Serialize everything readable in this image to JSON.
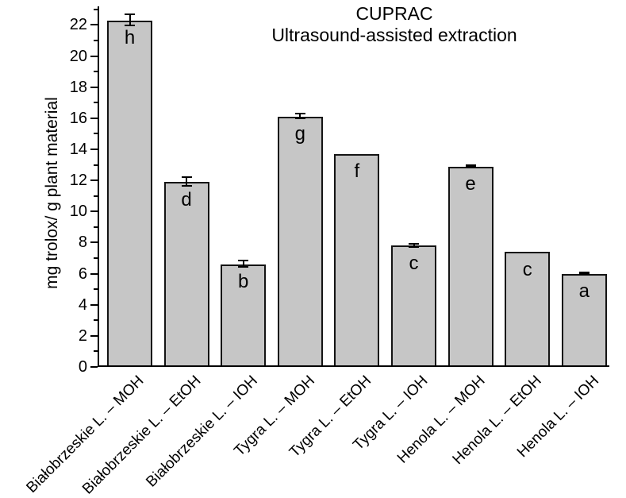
{
  "chart_data": {
    "type": "bar",
    "title": "CUPRAC",
    "subtitle": "Ultrasound-assisted extraction",
    "ylabel": "mg trolox/ g plant material",
    "xlabel": "",
    "ylim": [
      0,
      23.2
    ],
    "y_major_tick_step": 2,
    "y_minor_tick_step": 1,
    "y_major_ticks": [
      0,
      2,
      4,
      6,
      8,
      10,
      12,
      14,
      16,
      18,
      20,
      22
    ],
    "grid": false,
    "legend": false,
    "categories": [
      "Białobrzeskie L. – MOH",
      "Białobrzeskie L. – EtOH",
      "Białobrzeskie L. – IOH",
      "Tygra L. – MOH",
      "Tygra L. – EtOH",
      "Tygra L. – IOH",
      "Henola L. – MOH",
      "Henola L. – EtOH",
      "Henola L. – IOH"
    ],
    "values": [
      22.2,
      11.8,
      6.5,
      16.0,
      13.6,
      7.7,
      12.8,
      7.3,
      5.9
    ],
    "errors": [
      0.35,
      0.3,
      0.2,
      0.15,
      0,
      0.1,
      0.05,
      0,
      0.05
    ],
    "significance_letters": [
      "h",
      "d",
      "b",
      "g",
      "f",
      "c",
      "e",
      "c",
      "a"
    ],
    "colors": {
      "bar_fill": "#c6c6c6",
      "bar_border": "#141414",
      "axis": "#000000",
      "text": "#000000",
      "background": "#ffffff"
    }
  }
}
